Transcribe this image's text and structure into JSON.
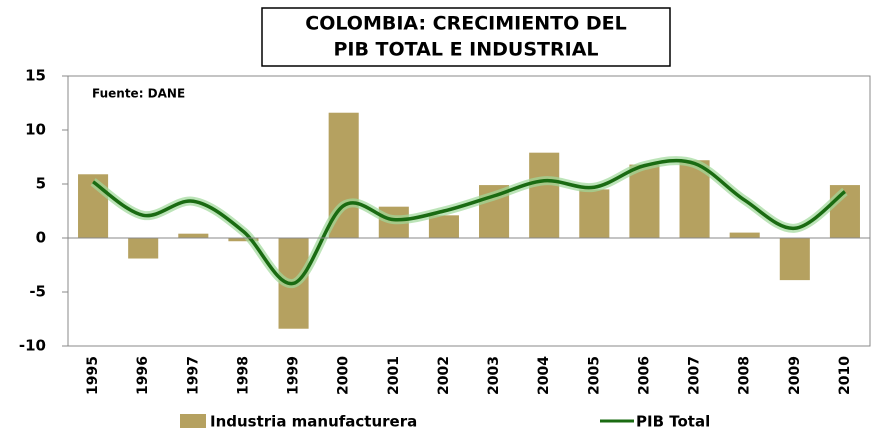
{
  "chart_data": {
    "type": "bar",
    "title": [
      "COLOMBIA: CRECIMIENTO DEL",
      "PIB TOTAL E INDUSTRIAL"
    ],
    "annotation": "Fuente: DANE",
    "categories": [
      "1995",
      "1996",
      "1997",
      "1998",
      "1999",
      "2000",
      "2001",
      "2002",
      "2003",
      "2004",
      "2005",
      "2006",
      "2007",
      "2008",
      "2009",
      "2010"
    ],
    "series": [
      {
        "name": "Industria manufacturera",
        "type": "bar",
        "color": "#b5a160",
        "values": [
          5.9,
          -1.9,
          0.4,
          -0.3,
          -8.4,
          11.6,
          2.9,
          2.1,
          4.9,
          7.9,
          4.5,
          6.8,
          7.2,
          0.5,
          -3.9,
          4.9
        ]
      },
      {
        "name": "PIB Total",
        "type": "line",
        "color": "#1a6b12",
        "values": [
          5.2,
          2.1,
          3.4,
          0.6,
          -4.2,
          3.0,
          1.7,
          2.5,
          3.9,
          5.3,
          4.7,
          6.7,
          6.9,
          3.5,
          0.9,
          4.3
        ]
      }
    ],
    "ylim": [
      -10,
      15
    ],
    "yticks": [
      -10,
      -5,
      0,
      5,
      10,
      15
    ],
    "smooth": true
  }
}
